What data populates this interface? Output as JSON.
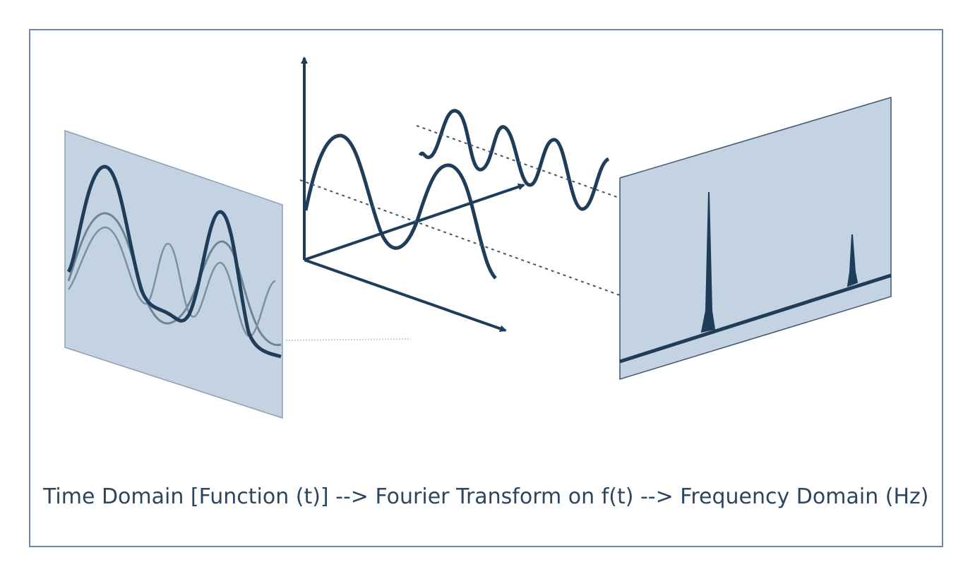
{
  "caption": "Time Domain [Function (t)] --> Fourier Transform on f(t) --> Frequency Domain (Hz)",
  "colors": {
    "frame_border": "#6d87aa",
    "panel_fill": "#c3d3e2",
    "panel_edge": "#3e5670",
    "signal_dark": "#1f3d58",
    "signal_light": "#6f8597",
    "axis": "#1f3d58",
    "caption_text": "#2d4660"
  },
  "panels": {
    "time_domain": {
      "icon": "time-domain-panel"
    },
    "frequency_domain": {
      "icon": "frequency-domain-panel"
    }
  }
}
